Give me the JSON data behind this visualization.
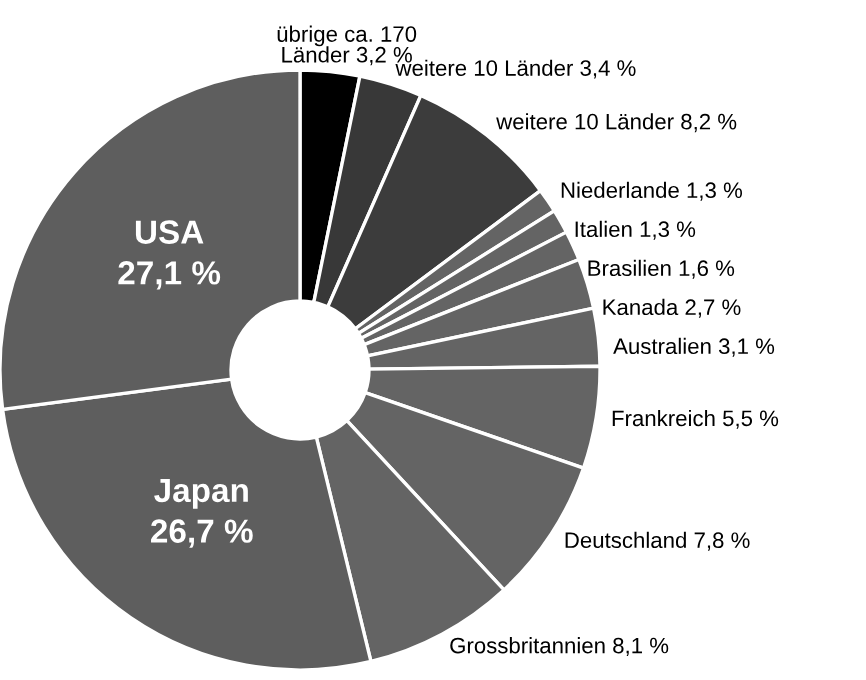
{
  "chart_data": {
    "type": "donut",
    "categories": [
      "übrige ca. 170\nLänder",
      "weitere 10 Länder",
      "weitere 10 Länder",
      "Niederlande",
      "Italien",
      "Brasilien",
      "Kanada",
      "Australien",
      "Frankreich",
      "Deutschland",
      "Grossbritannien",
      "Japan",
      "USA"
    ],
    "values": [
      3.2,
      3.4,
      8.2,
      1.3,
      1.3,
      1.6,
      2.7,
      3.1,
      5.5,
      7.8,
      8.1,
      26.7,
      27.1
    ],
    "value_labels": [
      "3,2 %",
      "3,4 %",
      "8,2 %",
      "1,3 %",
      "1,3 %",
      "1,6 %",
      "2,7 %",
      "3,1 %",
      "5,5 %",
      "7,8 %",
      "8,1 %",
      "26,7 %",
      "27,1 %"
    ],
    "colors": [
      "#000000",
      "#383838",
      "#3c3c3c",
      "#646464",
      "#646464",
      "#646464",
      "#646464",
      "#646464",
      "#646464",
      "#646464",
      "#646464",
      "#5e5e5e",
      "#5e5e5e"
    ],
    "legend": false
  }
}
